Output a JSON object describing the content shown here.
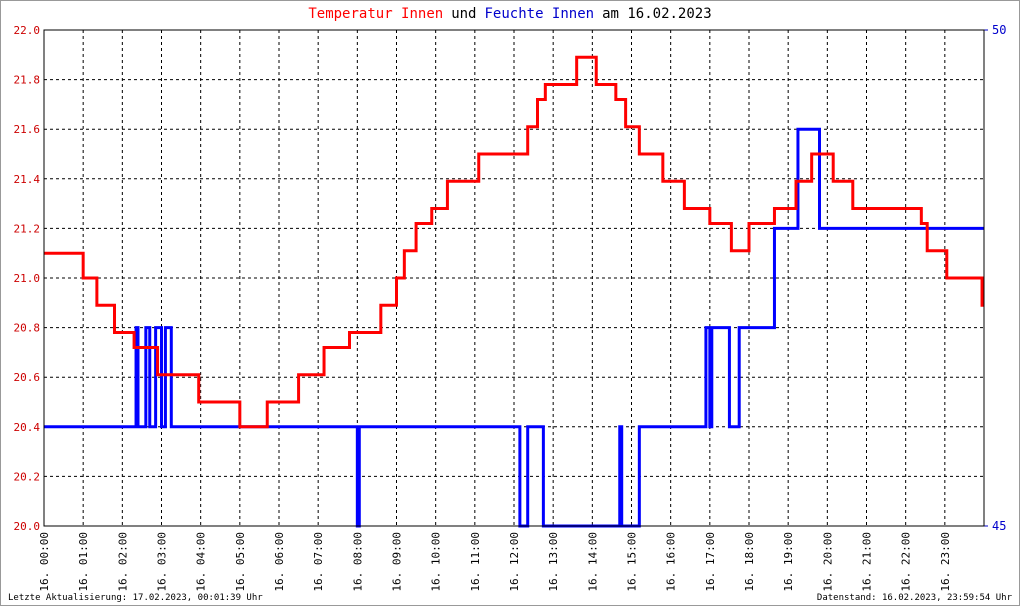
{
  "chart_data": {
    "type": "step-line",
    "title": [
      "Temperatur Innen",
      "und",
      "Feuchte Innen",
      "am 16.02.2023"
    ],
    "title_colors": [
      "#ff0000",
      "#000000",
      "#0000cc",
      "#000000"
    ],
    "footer_left": "Letzte Aktualisierung: 17.02.2023, 00:01:39 Uhr",
    "footer_right": "Datenstand: 16.02.2023, 23:59:54 Uhr",
    "grid": true,
    "xlim": [
      0,
      24
    ],
    "xticks": [
      {
        "value": 0,
        "label": "16. 00:00"
      },
      {
        "value": 1,
        "label": "16. 01:00"
      },
      {
        "value": 2,
        "label": "16. 02:00"
      },
      {
        "value": 3,
        "label": "16. 03:00"
      },
      {
        "value": 4,
        "label": "16. 04:00"
      },
      {
        "value": 5,
        "label": "16. 05:00"
      },
      {
        "value": 6,
        "label": "16. 06:00"
      },
      {
        "value": 7,
        "label": "16. 07:00"
      },
      {
        "value": 8,
        "label": "16. 08:00"
      },
      {
        "value": 9,
        "label": "16. 09:00"
      },
      {
        "value": 10,
        "label": "16. 10:00"
      },
      {
        "value": 11,
        "label": "16. 11:00"
      },
      {
        "value": 12,
        "label": "16. 12:00"
      },
      {
        "value": 13,
        "label": "16. 13:00"
      },
      {
        "value": 14,
        "label": "16. 14:00"
      },
      {
        "value": 15,
        "label": "16. 15:00"
      },
      {
        "value": 16,
        "label": "16. 16:00"
      },
      {
        "value": 17,
        "label": "16. 17:00"
      },
      {
        "value": 18,
        "label": "16. 18:00"
      },
      {
        "value": 19,
        "label": "16. 19:00"
      },
      {
        "value": 20,
        "label": "16. 20:00"
      },
      {
        "value": 21,
        "label": "16. 21:00"
      },
      {
        "value": 22,
        "label": "16. 22:00"
      },
      {
        "value": 23,
        "label": "16. 23:00"
      }
    ],
    "ylim": [
      20.0,
      22.0
    ],
    "yticks": [
      {
        "value": 20.0,
        "label": "20.0"
      },
      {
        "value": 20.2,
        "label": "20.2"
      },
      {
        "value": 20.4,
        "label": "20.4"
      },
      {
        "value": 20.6,
        "label": "20.6"
      },
      {
        "value": 20.8,
        "label": "20.8"
      },
      {
        "value": 21.0,
        "label": "21.0"
      },
      {
        "value": 21.2,
        "label": "21.2"
      },
      {
        "value": 21.4,
        "label": "21.4"
      },
      {
        "value": 21.6,
        "label": "21.6"
      },
      {
        "value": 21.8,
        "label": "21.8"
      },
      {
        "value": 22.0,
        "label": "22.0"
      }
    ],
    "y2lim": [
      45,
      50
    ],
    "y2ticks": [
      45,
      50
    ],
    "y2_color": "#0000cc",
    "series": [
      {
        "name": "Temperatur Innen",
        "color": "#ff0000",
        "axis": "y",
        "x": [
          0,
          1,
          1,
          1.35,
          1.35,
          1.8,
          1.8,
          2.3,
          2.3,
          2.9,
          2.9,
          3.95,
          3.95,
          5,
          5,
          5.7,
          5.7,
          6.5,
          6.5,
          7.15,
          7.15,
          7.8,
          7.8,
          8.6,
          8.6,
          9,
          9,
          9.2,
          9.2,
          9.5,
          9.5,
          9.9,
          9.9,
          10.3,
          10.3,
          11.1,
          11.1,
          12.35,
          12.35,
          12.6,
          12.6,
          12.8,
          12.8,
          13.6,
          13.6,
          14.1,
          14.1,
          14.6,
          14.6,
          14.85,
          14.85,
          15.2,
          15.2,
          15.8,
          15.8,
          16.35,
          16.35,
          17,
          17,
          17.55,
          17.55,
          18,
          18,
          18.65,
          18.65,
          19.2,
          19.2,
          19.6,
          19.6,
          20.15,
          20.15,
          20.65,
          20.65,
          22.4,
          22.4,
          22.55,
          22.55,
          23.05,
          23.05,
          23.95,
          23.95,
          24
        ],
        "values": [
          21.1,
          21.1,
          21.0,
          21.0,
          20.89,
          20.89,
          20.78,
          20.78,
          20.72,
          20.72,
          20.61,
          20.61,
          20.5,
          20.5,
          20.4,
          20.4,
          20.5,
          20.5,
          20.61,
          20.61,
          20.72,
          20.72,
          20.78,
          20.78,
          20.89,
          20.89,
          21.0,
          21.0,
          21.11,
          21.11,
          21.22,
          21.22,
          21.28,
          21.28,
          21.39,
          21.39,
          21.5,
          21.5,
          21.61,
          21.61,
          21.72,
          21.72,
          21.78,
          21.78,
          21.89,
          21.89,
          21.78,
          21.78,
          21.72,
          21.72,
          21.61,
          21.61,
          21.5,
          21.5,
          21.39,
          21.39,
          21.28,
          21.28,
          21.22,
          21.22,
          21.11,
          21.11,
          21.22,
          21.22,
          21.28,
          21.28,
          21.39,
          21.39,
          21.5,
          21.5,
          21.39,
          21.39,
          21.28,
          21.28,
          21.22,
          21.22,
          21.11,
          21.11,
          21.0,
          21.0,
          20.89,
          20.89
        ]
      },
      {
        "name": "Feuchte Innen",
        "color": "#0000ff",
        "axis": "y2",
        "x": [
          0,
          2.35,
          2.35,
          2.4,
          2.4,
          2.6,
          2.6,
          2.7,
          2.7,
          2.85,
          2.85,
          3.0,
          3.0,
          3.1,
          3.1,
          3.25,
          3.25,
          8.0,
          8.0,
          8.05,
          8.05,
          12.15,
          12.15,
          12.35,
          12.35,
          12.75,
          12.75,
          14.7,
          14.7,
          14.75,
          14.75,
          15.2,
          15.2,
          16.9,
          16.9,
          17.0,
          17.0,
          17.05,
          17.05,
          17.5,
          17.5,
          17.75,
          17.75,
          18.65,
          18.65,
          19.25,
          19.25,
          19.8,
          19.8,
          24
        ],
        "values": [
          46,
          46,
          47,
          47,
          46,
          46,
          47,
          47,
          46,
          46,
          47,
          47,
          46,
          46,
          47,
          47,
          46,
          46,
          45,
          45,
          46,
          46,
          45,
          45,
          46,
          46,
          45,
          45,
          46,
          46,
          45,
          45,
          46,
          46,
          47,
          47,
          46,
          46,
          47,
          47,
          46,
          46,
          47,
          47,
          48,
          48,
          49,
          49,
          48,
          48
        ]
      }
    ]
  }
}
